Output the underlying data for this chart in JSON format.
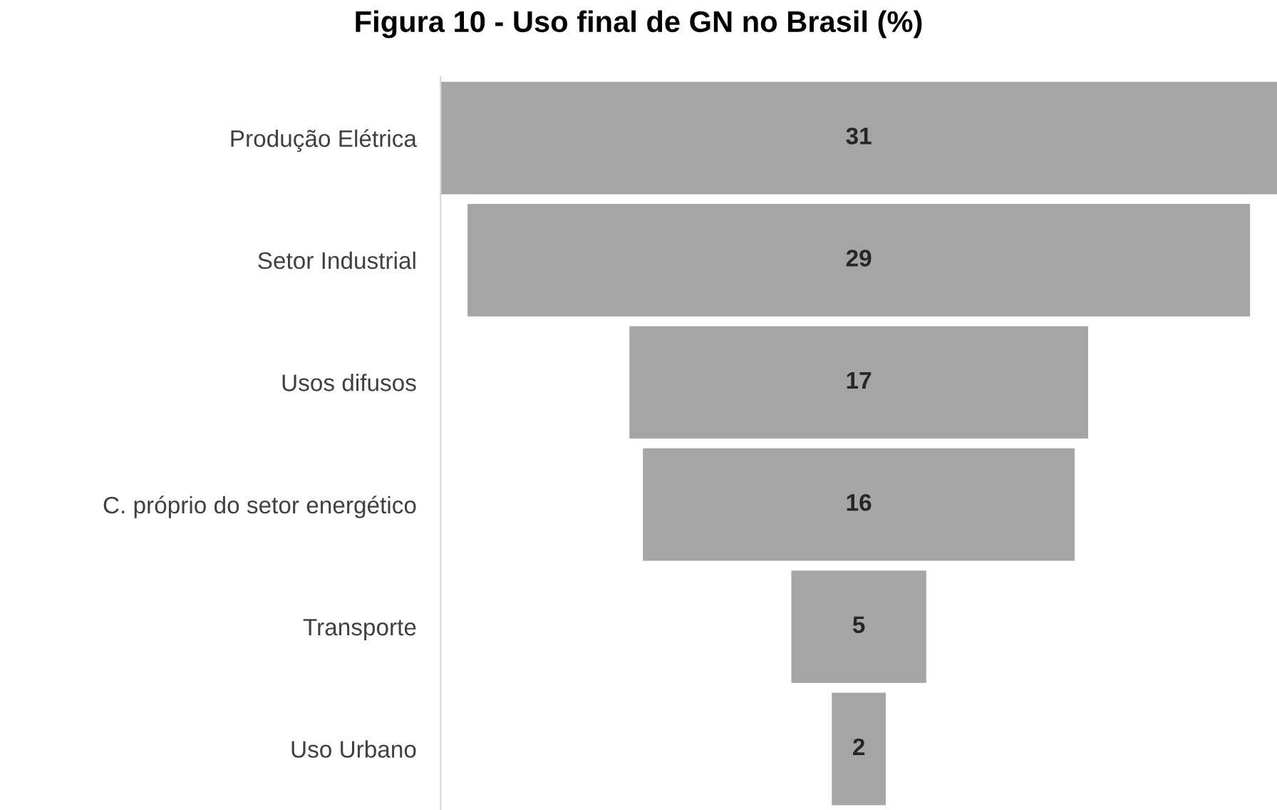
{
  "chart_data": {
    "type": "other",
    "title": "Figura 10 - Uso final de GN no Brasil (%)",
    "categories": [
      "Produção Elétrica",
      "Setor Industrial",
      "Usos difusos",
      "C. próprio do setor energético",
      "Transporte",
      "Uso Urbano"
    ],
    "values": [
      31,
      29,
      17,
      16,
      5,
      2
    ],
    "color": "#a5a5a5",
    "data_labels": true
  }
}
